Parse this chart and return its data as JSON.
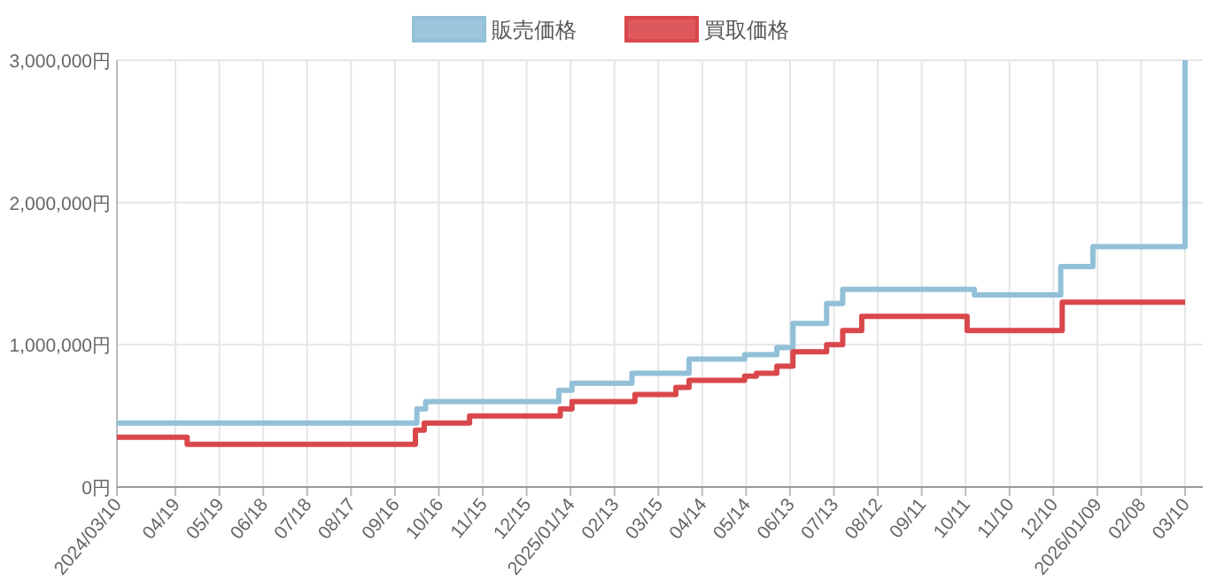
{
  "chart_data": {
    "type": "step",
    "legend": "top",
    "grid": true,
    "series": [
      {
        "name": "販売価格",
        "color": "#92c0d8",
        "x": [
          "2024-03-10",
          "2024-10-01",
          "2024-10-07",
          "2025-01-06",
          "2025-01-15",
          "2025-02-25",
          "2025-04-05",
          "2025-05-13",
          "2025-06-04",
          "2025-06-15",
          "2025-07-08",
          "2025-07-19",
          "2025-10-17",
          "2025-12-15",
          "2026-01-06",
          "2026-03-10"
        ],
        "values": [
          450000,
          550000,
          600000,
          680000,
          730000,
          800000,
          900000,
          930000,
          980000,
          1150000,
          1290000,
          1390000,
          1350000,
          1550000,
          1690000,
          3000000
        ]
      },
      {
        "name": "買取価格",
        "color": "#d9474a",
        "x": [
          "2024-03-10",
          "2024-04-27",
          "2024-09-30",
          "2024-10-06",
          "2024-11-06",
          "2025-01-07",
          "2025-01-15",
          "2025-02-27",
          "2025-03-27",
          "2025-04-05",
          "2025-05-13",
          "2025-05-21",
          "2025-06-04",
          "2025-06-15",
          "2025-07-08",
          "2025-07-19",
          "2025-08-01",
          "2025-10-12",
          "2025-12-16",
          "2026-03-10"
        ],
        "values": [
          350000,
          300000,
          400000,
          450000,
          500000,
          550000,
          600000,
          650000,
          700000,
          750000,
          780000,
          800000,
          850000,
          950000,
          1000000,
          1100000,
          1200000,
          1100000,
          1300000,
          1300000
        ]
      }
    ],
    "xlim": [
      "2024-03-10",
      "2026-03-10"
    ],
    "xticks": [
      {
        "value": "2024-03-10",
        "label": "2024/03/10"
      },
      {
        "value": "2024-04-19",
        "label": "04/19"
      },
      {
        "value": "2024-05-19",
        "label": "05/19"
      },
      {
        "value": "2024-06-18",
        "label": "06/18"
      },
      {
        "value": "2024-07-18",
        "label": "07/18"
      },
      {
        "value": "2024-08-17",
        "label": "08/17"
      },
      {
        "value": "2024-09-16",
        "label": "09/16"
      },
      {
        "value": "2024-10-16",
        "label": "10/16"
      },
      {
        "value": "2024-11-15",
        "label": "11/15"
      },
      {
        "value": "2024-12-15",
        "label": "12/15"
      },
      {
        "value": "2025-01-14",
        "label": "2025/01/14"
      },
      {
        "value": "2025-02-13",
        "label": "02/13"
      },
      {
        "value": "2025-03-15",
        "label": "03/15"
      },
      {
        "value": "2025-04-14",
        "label": "04/14"
      },
      {
        "value": "2025-05-14",
        "label": "05/14"
      },
      {
        "value": "2025-06-13",
        "label": "06/13"
      },
      {
        "value": "2025-07-13",
        "label": "07/13"
      },
      {
        "value": "2025-08-12",
        "label": "08/12"
      },
      {
        "value": "2025-09-11",
        "label": "09/11"
      },
      {
        "value": "2025-10-11",
        "label": "10/11"
      },
      {
        "value": "2025-11-10",
        "label": "11/10"
      },
      {
        "value": "2025-12-10",
        "label": "12/10"
      },
      {
        "value": "2026-01-09",
        "label": "2026/01/09"
      },
      {
        "value": "2026-02-08",
        "label": "02/08"
      },
      {
        "value": "2026-03-10",
        "label": "03/10"
      }
    ],
    "ylim": [
      0,
      3000000
    ],
    "yticks": [
      {
        "value": 0,
        "label": "0円"
      },
      {
        "value": 1000000,
        "label": "1,000,000円"
      },
      {
        "value": 2000000,
        "label": "2,000,000円"
      },
      {
        "value": 3000000,
        "label": "3,000,000円"
      }
    ]
  }
}
